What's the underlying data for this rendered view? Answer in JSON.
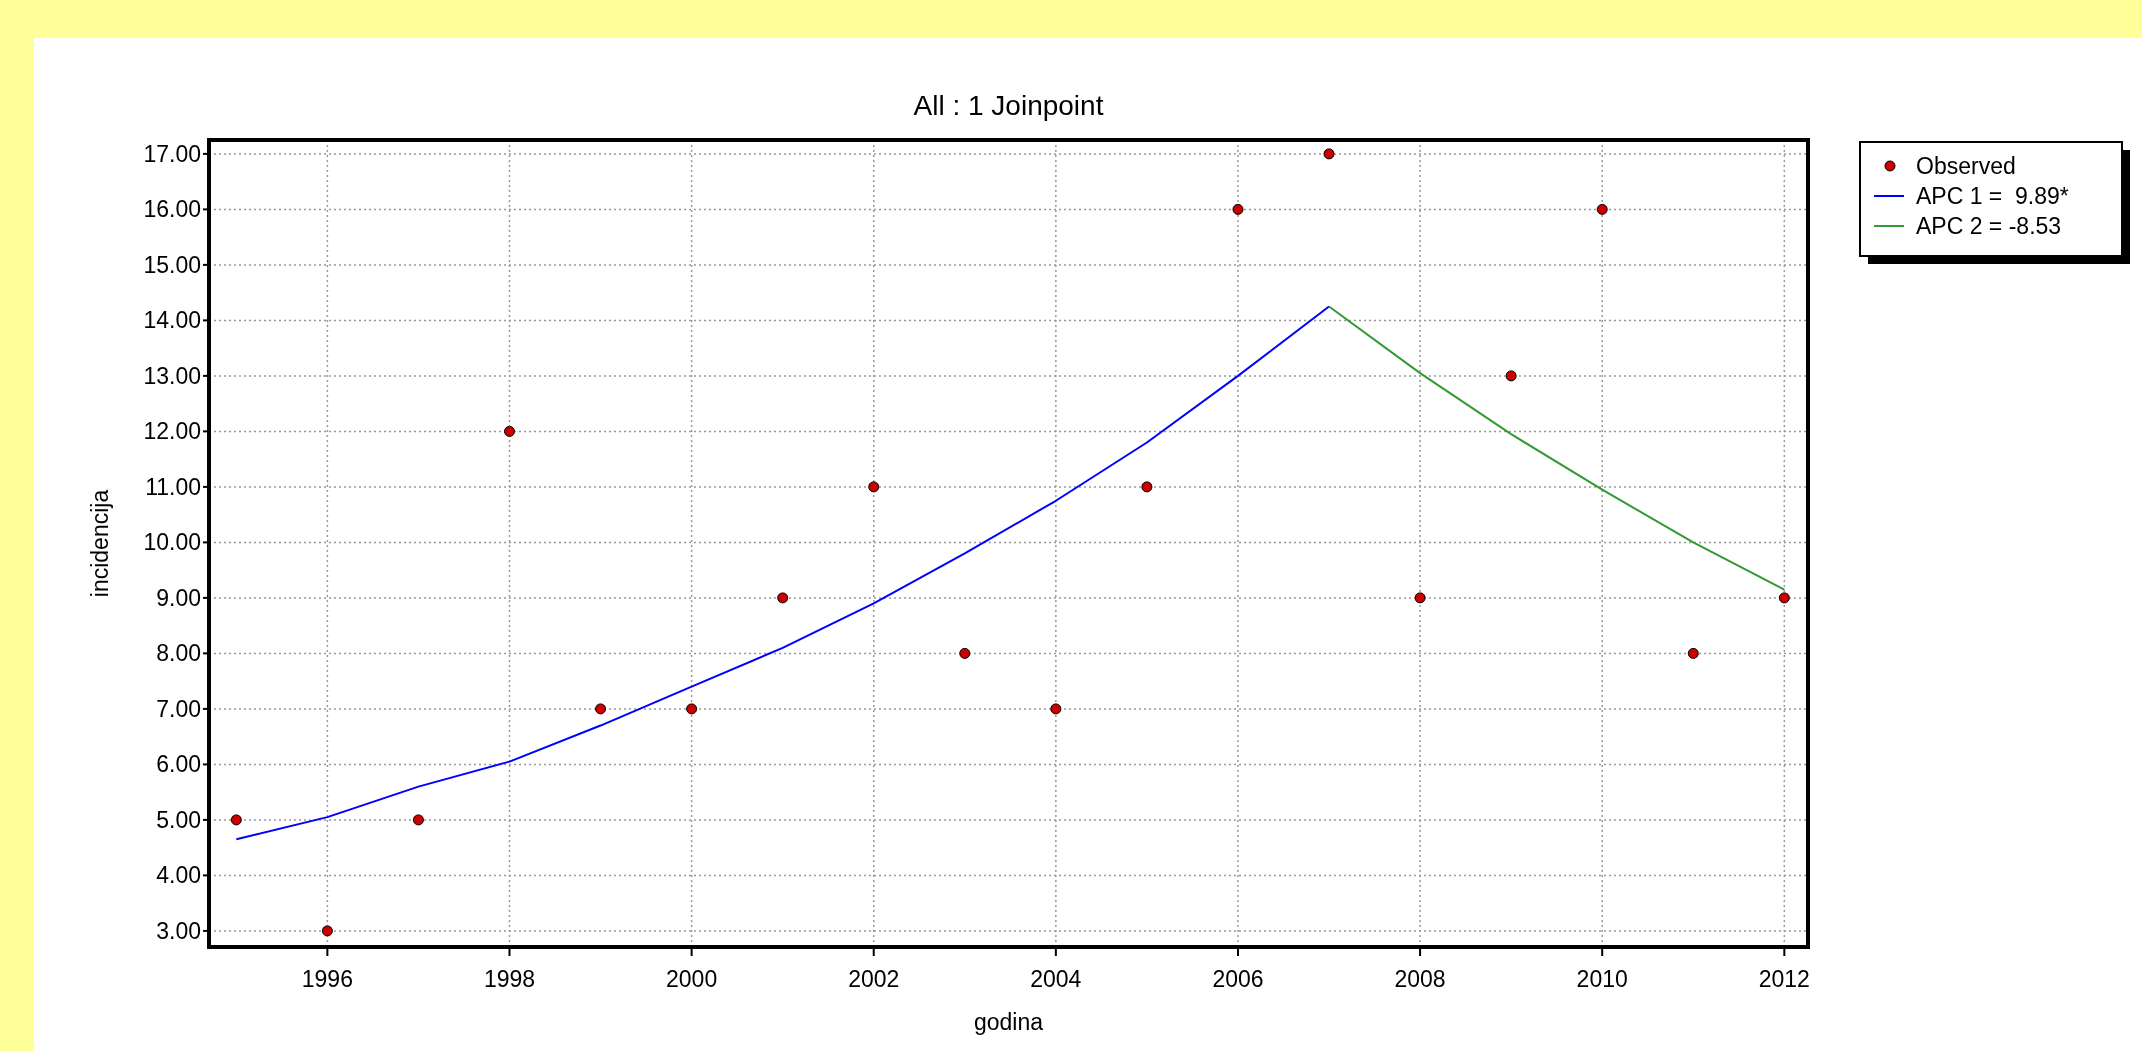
{
  "chart_data": {
    "type": "scatter",
    "title": "All : 1 Joinpoint",
    "xlabel": "godina",
    "ylabel": "incidencija",
    "xlim": [
      1994.7,
      2012.26
    ],
    "xticks": [
      1996,
      1998,
      2000,
      2002,
      2004,
      2006,
      2008,
      2010,
      2012
    ],
    "ylim": [
      2.71,
      17.25
    ],
    "yticks": [
      {
        "value": 3,
        "label": "3.00"
      },
      {
        "value": 4,
        "label": "4.00"
      },
      {
        "value": 5,
        "label": "5.00"
      },
      {
        "value": 6,
        "label": "6.00"
      },
      {
        "value": 7,
        "label": "7.00"
      },
      {
        "value": 8,
        "label": "8.00"
      },
      {
        "value": 9,
        "label": "9.00"
      },
      {
        "value": 10,
        "label": "10.00"
      },
      {
        "value": 11,
        "label": "11.00"
      },
      {
        "value": 12,
        "label": "12.00"
      },
      {
        "value": 13,
        "label": "13.00"
      },
      {
        "value": 14,
        "label": "14.00"
      },
      {
        "value": 15,
        "label": "15.00"
      },
      {
        "value": 16,
        "label": "16.00"
      },
      {
        "value": 17,
        "label": "17.00"
      }
    ],
    "grid": true,
    "legend": "top right",
    "series": [
      {
        "name": "Observed",
        "marker": "circle",
        "color": "#cc0000",
        "x": [
          1995,
          1996,
          1997,
          1998,
          1999,
          2000,
          2001,
          2002,
          2003,
          2004,
          2005,
          2006,
          2007,
          2008,
          2009,
          2010,
          2011,
          2012
        ],
        "values": [
          5,
          3,
          5,
          12,
          7,
          7,
          9,
          11,
          8,
          7,
          11,
          16,
          17,
          9,
          13,
          16,
          8,
          9
        ]
      },
      {
        "name": "APC 1 =  9.89*",
        "type": "line",
        "marker": "none",
        "color": "#0000ff",
        "x": [
          1995,
          1996,
          1997,
          1998,
          1999,
          2000,
          2001,
          2002,
          2003,
          2004,
          2005,
          2006,
          2007
        ],
        "values": [
          4.65,
          5.05,
          5.6,
          6.05,
          6.7,
          7.4,
          8.1,
          8.9,
          9.8,
          10.75,
          11.8,
          13.0,
          14.25
        ]
      },
      {
        "name": "APC 2 = -8.53",
        "type": "line",
        "marker": "none",
        "color": "#339933",
        "x": [
          2007,
          2008,
          2009,
          2010,
          2011,
          2012
        ],
        "values": [
          14.25,
          13.05,
          11.95,
          10.95,
          10.0,
          9.15
        ]
      }
    ]
  }
}
